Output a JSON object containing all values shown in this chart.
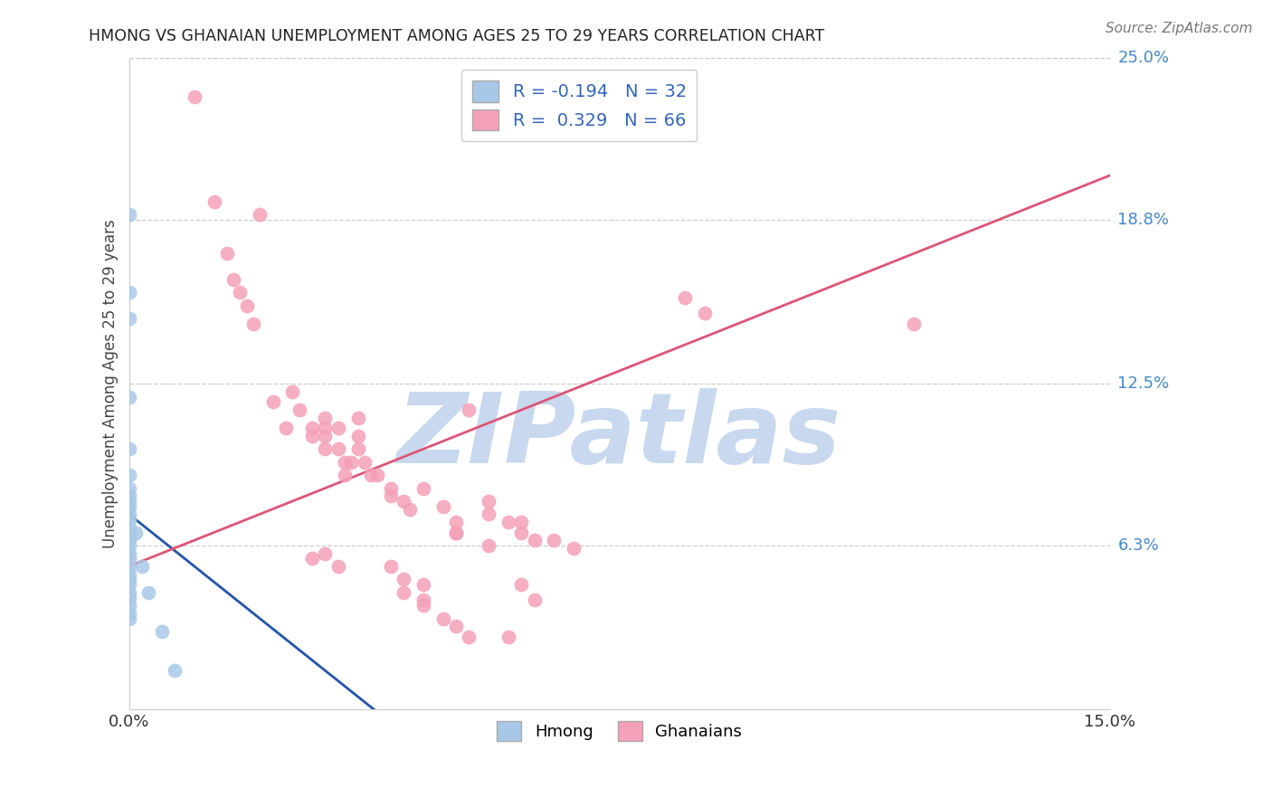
{
  "title": "HMONG VS GHANAIAN UNEMPLOYMENT AMONG AGES 25 TO 29 YEARS CORRELATION CHART",
  "source": "Source: ZipAtlas.com",
  "ylabel": "Unemployment Among Ages 25 to 29 years",
  "xlim": [
    0.0,
    0.15
  ],
  "ylim": [
    0.0,
    0.25
  ],
  "ytick_labels_right": [
    "6.3%",
    "12.5%",
    "18.8%",
    "25.0%"
  ],
  "ytick_vals_right": [
    0.063,
    0.125,
    0.188,
    0.25
  ],
  "hmong_color": "#a8c8e8",
  "ghanaian_color": "#f4a0b8",
  "hmong_line_color": "#2255aa",
  "ghanaian_line_color": "#dd5577",
  "hmong_line_dashed_color": "#aabbcc",
  "background_color": "#ffffff",
  "grid_color": "#cccccc",
  "watermark_text": "ZIPatlas",
  "watermark_color": "#c8d8ee",
  "legend_R_hmong": "-0.194",
  "legend_N_hmong": "32",
  "legend_R_ghana": "0.329",
  "legend_N_ghana": "66",
  "hmong_points": [
    [
      0.0,
      0.19
    ],
    [
      0.0,
      0.16
    ],
    [
      0.0,
      0.15
    ],
    [
      0.0,
      0.12
    ],
    [
      0.0,
      0.1
    ],
    [
      0.0,
      0.09
    ],
    [
      0.0,
      0.085
    ],
    [
      0.0,
      0.082
    ],
    [
      0.0,
      0.08
    ],
    [
      0.0,
      0.078
    ],
    [
      0.0,
      0.075
    ],
    [
      0.0,
      0.073
    ],
    [
      0.0,
      0.07
    ],
    [
      0.0,
      0.068
    ],
    [
      0.0,
      0.065
    ],
    [
      0.0,
      0.063
    ],
    [
      0.0,
      0.06
    ],
    [
      0.0,
      0.058
    ],
    [
      0.0,
      0.055
    ],
    [
      0.0,
      0.052
    ],
    [
      0.0,
      0.05
    ],
    [
      0.0,
      0.048
    ],
    [
      0.0,
      0.045
    ],
    [
      0.0,
      0.043
    ],
    [
      0.0,
      0.04
    ],
    [
      0.0,
      0.037
    ],
    [
      0.0,
      0.035
    ],
    [
      0.001,
      0.068
    ],
    [
      0.002,
      0.055
    ],
    [
      0.003,
      0.045
    ],
    [
      0.005,
      0.03
    ],
    [
      0.007,
      0.015
    ]
  ],
  "ghanaian_points": [
    [
      0.01,
      0.235
    ],
    [
      0.013,
      0.195
    ],
    [
      0.015,
      0.175
    ],
    [
      0.016,
      0.165
    ],
    [
      0.017,
      0.16
    ],
    [
      0.018,
      0.155
    ],
    [
      0.019,
      0.148
    ],
    [
      0.02,
      0.19
    ],
    [
      0.022,
      0.118
    ],
    [
      0.024,
      0.108
    ],
    [
      0.025,
      0.122
    ],
    [
      0.026,
      0.115
    ],
    [
      0.028,
      0.108
    ],
    [
      0.028,
      0.105
    ],
    [
      0.03,
      0.112
    ],
    [
      0.03,
      0.108
    ],
    [
      0.03,
      0.105
    ],
    [
      0.03,
      0.1
    ],
    [
      0.032,
      0.108
    ],
    [
      0.032,
      0.1
    ],
    [
      0.033,
      0.095
    ],
    [
      0.033,
      0.09
    ],
    [
      0.034,
      0.095
    ],
    [
      0.035,
      0.112
    ],
    [
      0.035,
      0.105
    ],
    [
      0.035,
      0.1
    ],
    [
      0.036,
      0.095
    ],
    [
      0.037,
      0.09
    ],
    [
      0.038,
      0.09
    ],
    [
      0.04,
      0.085
    ],
    [
      0.04,
      0.082
    ],
    [
      0.042,
      0.08
    ],
    [
      0.043,
      0.077
    ],
    [
      0.045,
      0.085
    ],
    [
      0.048,
      0.078
    ],
    [
      0.05,
      0.072
    ],
    [
      0.05,
      0.068
    ],
    [
      0.052,
      0.115
    ],
    [
      0.055,
      0.08
    ],
    [
      0.055,
      0.075
    ],
    [
      0.058,
      0.072
    ],
    [
      0.06,
      0.072
    ],
    [
      0.06,
      0.068
    ],
    [
      0.062,
      0.065
    ],
    [
      0.065,
      0.065
    ],
    [
      0.068,
      0.062
    ],
    [
      0.05,
      0.068
    ],
    [
      0.055,
      0.063
    ],
    [
      0.04,
      0.055
    ],
    [
      0.042,
      0.05
    ],
    [
      0.045,
      0.048
    ],
    [
      0.045,
      0.042
    ],
    [
      0.06,
      0.048
    ],
    [
      0.062,
      0.042
    ],
    [
      0.048,
      0.035
    ],
    [
      0.05,
      0.032
    ],
    [
      0.052,
      0.028
    ],
    [
      0.058,
      0.028
    ],
    [
      0.085,
      0.158
    ],
    [
      0.088,
      0.152
    ],
    [
      0.12,
      0.148
    ],
    [
      0.042,
      0.045
    ],
    [
      0.045,
      0.04
    ],
    [
      0.03,
      0.06
    ],
    [
      0.032,
      0.055
    ],
    [
      0.028,
      0.058
    ]
  ]
}
